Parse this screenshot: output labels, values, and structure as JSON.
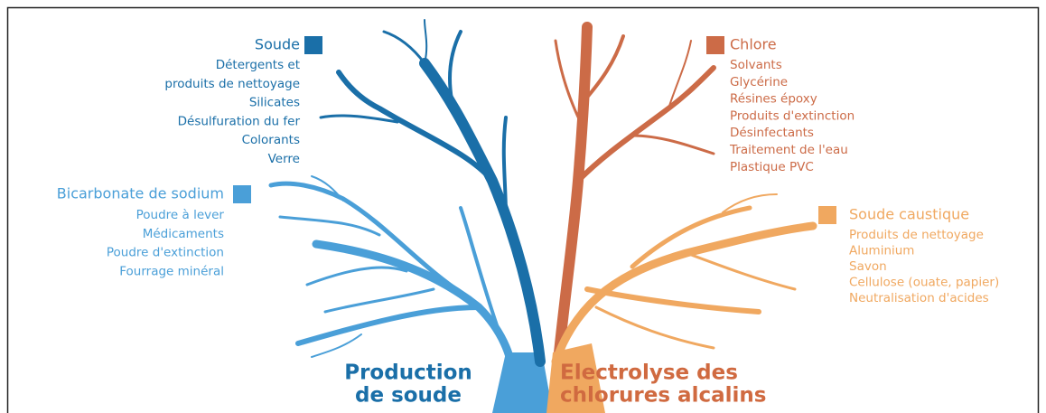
{
  "groups": [
    {
      "title": "Soude",
      "items": [
        "Détergents et",
        "produits de nettoyage",
        "Silicates",
        "Désulfuration du fer",
        "Colorants",
        "Verre"
      ]
    },
    {
      "title": "Bicarbonate de sodium",
      "items": [
        "Poudre à lever",
        "Médicaments",
        "Poudre d'extinction",
        "Fourrage minéral"
      ]
    },
    {
      "title": "Chlore",
      "items": [
        "Solvants",
        "Glycérine",
        "Résines époxy",
        "Produits d'extinction",
        "Désinfectants",
        "Traitement de l'eau",
        "Plastique PVC"
      ]
    },
    {
      "title": "Soude caustique",
      "items": [
        "Produits de nettoyage",
        "Aluminium",
        "Savon",
        "Cellulose (ouate, papier)",
        "Neutralisation d'acides"
      ]
    }
  ],
  "trunks": [
    {
      "lines": [
        "Production",
        "de soude"
      ]
    },
    {
      "lines": [
        "Electrolyse des",
        "chlorures alcalins"
      ]
    }
  ]
}
